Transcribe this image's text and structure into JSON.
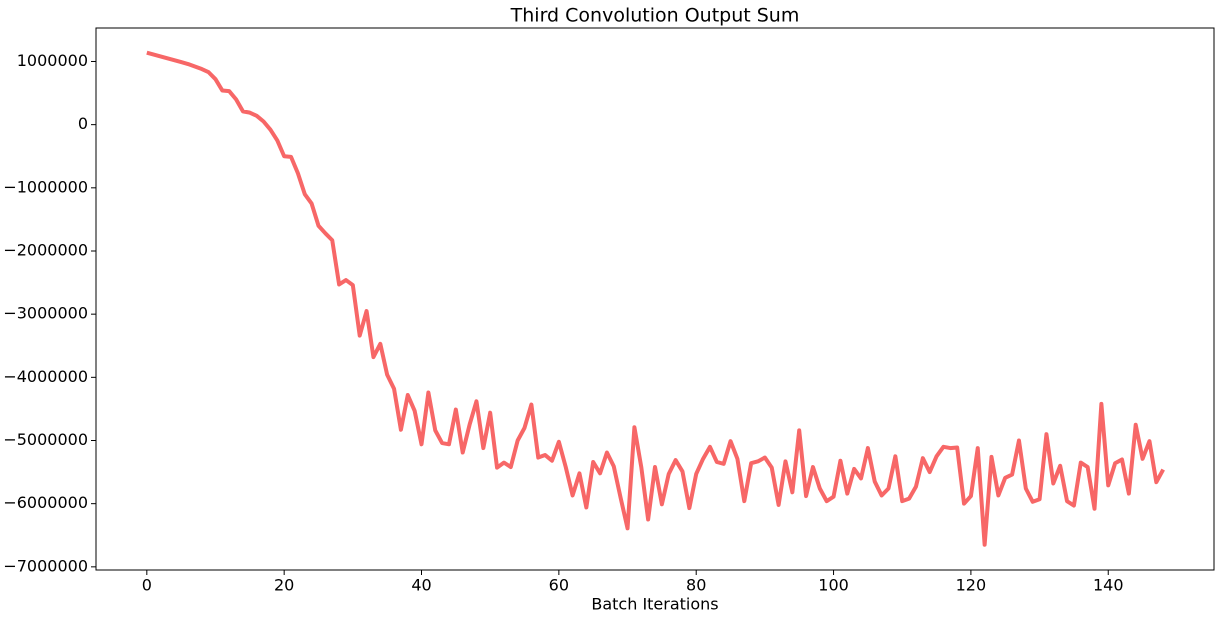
{
  "chart_data": {
    "type": "line",
    "title": "Third Convolution Output Sum",
    "x_label": "Batch Iterations",
    "color": "#f76767",
    "xlim": [
      -7.4,
      155.4
    ],
    "ylim": [
      -7050000,
      1530000
    ],
    "xticks": [
      0,
      20,
      40,
      60,
      80,
      100,
      120,
      140
    ],
    "yticks": [
      {
        "value": -7000000,
        "label": "−7000000"
      },
      {
        "value": -6000000,
        "label": "−6000000"
      },
      {
        "value": -5000000,
        "label": "−5000000"
      },
      {
        "value": -4000000,
        "label": "−4000000"
      },
      {
        "value": -3000000,
        "label": "−3000000"
      },
      {
        "value": -2000000,
        "label": "−2000000"
      },
      {
        "value": -1000000,
        "label": "−1000000"
      },
      0,
      1000000
    ],
    "x": [
      0,
      1,
      2,
      3,
      4,
      5,
      6,
      7,
      8,
      9,
      10,
      11,
      12,
      13,
      14,
      15,
      16,
      17,
      18,
      19,
      20,
      21,
      22,
      23,
      24,
      25,
      26,
      27,
      28,
      29,
      30,
      31,
      32,
      33,
      34,
      35,
      36,
      37,
      38,
      39,
      40,
      41,
      42,
      43,
      44,
      45,
      46,
      47,
      48,
      49,
      50,
      51,
      52,
      53,
      54,
      55,
      56,
      57,
      58,
      59,
      60,
      61,
      62,
      63,
      64,
      65,
      66,
      67,
      68,
      69,
      70,
      71,
      72,
      73,
      74,
      75,
      76,
      77,
      78,
      79,
      80,
      81,
      82,
      83,
      84,
      85,
      86,
      87,
      88,
      89,
      90,
      91,
      92,
      93,
      94,
      95,
      96,
      97,
      98,
      99,
      100,
      101,
      102,
      103,
      104,
      105,
      106,
      107,
      108,
      109,
      110,
      111,
      112,
      113,
      114,
      115,
      116,
      117,
      118,
      119,
      120,
      121,
      122,
      123,
      124,
      125,
      126,
      127,
      128,
      129,
      130,
      131,
      132,
      133,
      134,
      135,
      136,
      137,
      138,
      139,
      140,
      141,
      142,
      143,
      144,
      145,
      146,
      147,
      148
    ],
    "values": [
      1140000,
      1110000,
      1080000,
      1050000,
      1020000,
      990000,
      960000,
      920000,
      880000,
      830000,
      720000,
      540000,
      530000,
      400000,
      210000,
      190000,
      140000,
      50000,
      -80000,
      -250000,
      -500000,
      -510000,
      -770000,
      -1100000,
      -1250000,
      -1600000,
      -1720000,
      -1830000,
      -2530000,
      -2460000,
      -2540000,
      -3340000,
      -2950000,
      -3680000,
      -3470000,
      -3960000,
      -4180000,
      -4830000,
      -4280000,
      -4530000,
      -5060000,
      -4240000,
      -4840000,
      -5040000,
      -5060000,
      -4510000,
      -5190000,
      -4750000,
      -4380000,
      -5120000,
      -4560000,
      -5430000,
      -5350000,
      -5420000,
      -5000000,
      -4800000,
      -4430000,
      -5270000,
      -5230000,
      -5320000,
      -5020000,
      -5420000,
      -5870000,
      -5520000,
      -6060000,
      -5340000,
      -5520000,
      -5190000,
      -5410000,
      -5910000,
      -6390000,
      -4790000,
      -5420000,
      -6250000,
      -5420000,
      -6010000,
      -5530000,
      -5310000,
      -5490000,
      -6070000,
      -5530000,
      -5290000,
      -5100000,
      -5340000,
      -5370000,
      -5010000,
      -5290000,
      -5960000,
      -5360000,
      -5330000,
      -5270000,
      -5430000,
      -6020000,
      -5330000,
      -5820000,
      -4840000,
      -5880000,
      -5420000,
      -5760000,
      -5960000,
      -5890000,
      -5320000,
      -5840000,
      -5450000,
      -5600000,
      -5120000,
      -5650000,
      -5870000,
      -5760000,
      -5250000,
      -5960000,
      -5920000,
      -5730000,
      -5280000,
      -5500000,
      -5250000,
      -5100000,
      -5120000,
      -5110000,
      -6000000,
      -5880000,
      -5120000,
      -6650000,
      -5260000,
      -5870000,
      -5590000,
      -5540000,
      -5000000,
      -5760000,
      -5970000,
      -5930000,
      -4900000,
      -5680000,
      -5400000,
      -5960000,
      -6030000,
      -5350000,
      -5420000,
      -6080000,
      -4420000,
      -5710000,
      -5360000,
      -5300000,
      -5840000,
      -4750000,
      -5290000,
      -5010000,
      -5660000,
      -5460000
    ]
  }
}
